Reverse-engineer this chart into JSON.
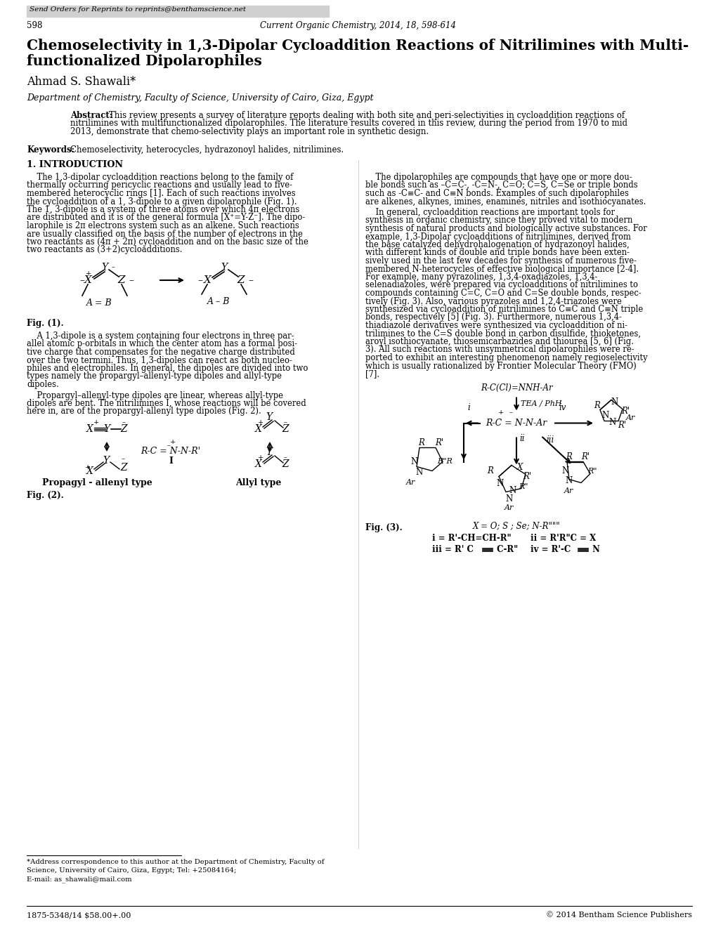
{
  "bg_color": "#ffffff",
  "header_bg": "#d0d0d0",
  "header_text": "Send Orders for Reprints to reprints@benthamscience.net",
  "page_num": "598",
  "journal_ref": "Current Organic Chemistry, 2014, 18, 598-614",
  "title_line1": "Chemoselectivity in 1,3-Dipolar Cycloaddition Reactions of Nitrilimines with Multi-",
  "title_line2": "functionalized Dipolarophiles",
  "author": "Ahmad S. Shawali*",
  "affiliation": "Department of Chemistry, Faculty of Science, University of Cairo, Giza, Egypt",
  "abstract_text": "This review presents a survey of literature reports dealing with both site and peri-selectivities in cycloaddition reactions of nitrilimines with multifunctionalized dipolarophiles. The literature results covered in this review, during the period from 1970 to mid 2013, demonstrate that chemo-selectivity plays an important role in synthetic design.",
  "keywords_text": "Chemoselectivity, heterocycles, hydrazonoyl halides, nitrilimines.",
  "section1_title": "1. INTRODUCTION",
  "col1_p1": [
    "    The 1,3-dipolar cycloaddition reactions belong to the family of",
    "thermally occurring pericyclic reactions and usually lead to five-",
    "membered heterocyclic rings [1]. Each of such reactions involves",
    "the cycloaddition of a 1, 3-dipole to a given dipolarophile (Fig. 1).",
    "The 1, 3-dipole is a system of three atoms over which 4π electrons",
    "are distributed and it is of the general formula [X⁺=Y-Z⁻]. The dipo-",
    "larophile is 2π electrons system such as an alkene. Such reactions",
    "are usually classified on the basis of the number of electrons in the",
    "two reactants as (4π + 2π) cycloaddition and on the basic size of the",
    "two reactants as (3+2)cycloadditions."
  ],
  "col1_p2": [
    "    A 1,3-dipole is a system containing four electrons in three par-",
    "allel atomic p-orbitals in which the center atom has a formal posi-",
    "tive charge that compensates for the negative charge distributed",
    "over the two termini. Thus, 1,3-dipoles can react as both nucleo-",
    "philes and electrophiles. In general, the dipoles are divided into two",
    "types namely the propargyl–allenyl-type dipoles and allyl-type",
    "dipoles."
  ],
  "col1_p3": [
    "    Propargyl–allenyl-type dipoles are linear, whereas allyl-type",
    "dipoles are bent. The nitrilimines Ⅰ, whose reactions will be covered",
    "here in, are of the propargyl-allenyl type dipoles (Fig. 2)."
  ],
  "col2_p1": [
    "    The dipolarophiles are compounds that have one or more dou-",
    "ble bonds such as –C=C-, -C=N-, C=O; C=S, C=Se or triple bonds",
    "such as -C≡C- and C≡N bonds. Examples of such dipolarophiles",
    "are alkenes, alkynes, imines, enamines, nitriles and isothiocyanates."
  ],
  "col2_p2": [
    "    In general, cycloaddition reactions are important tools for",
    "synthesis in organic chemistry, since they proved vital to modern",
    "synthesis of natural products and biologically active substances. For",
    "example, 1,3-Dipolar cycloadditions of nitrilimines, derived from",
    "the base catalyzed dehydrohalogenation of hydrazonoyl halides,",
    "with different kinds of double and triple bonds have been exten-",
    "sively used in the last few decades for synthesis of numerous five-",
    "membered N-heterocycles of effective biological importance [2-4].",
    "For example, many pyrazolines, 1,3,4-oxadiazoles, 1,3,4-",
    "selenadiazoles, were prepared via cycloadditions of nitrilimines to",
    "compounds containing C=C, C=O and C=Se double bonds, respec-",
    "tively (Fig. 3). Also, various pyrazoles and 1,2,4-triazoles were",
    "synthesized via cycloaddition of nitrilimines to C≡C and C≡N triple",
    "bonds, respectively [5] (Fig. 3). Furthermore, numerous 1,3,4-",
    "thiadiazole derivatives were synthesized via cycloaddition of ni-",
    "trilimines to the C=S double bond in carbon disulfide, thioketones,",
    "aroyl isothiocyanate, thiosemicarbazides and thiourea [5, 6] (Fig.",
    "3). All such reactions with unsymmetrical dipolarophiles were re-",
    "ported to exhibit an interesting phenomenon namely regioselectivity",
    "which is usually rationalized by Frontier Molecular Theory (FMO)",
    "[7]."
  ],
  "fig1_label": "Fig. (1).",
  "fig2_label": "Fig. (2).",
  "fig3_label": "Fig. (3).",
  "propargyl_label": "Propagyl - allenyl type",
  "allyl_label": "Allyl type",
  "footnote_line1": "*Address correspondence to this author at the Department of Chemistry, Faculty of",
  "footnote_line2": "Science, University of Cairo, Giza, Egypt; Tel: +25084164;",
  "footnote_line3": "E-mail: as_shawali@mail.com",
  "footer_left": "1875-5348/14 $58.00+.00",
  "footer_right": "© 2014 Bentham Science Publishers"
}
